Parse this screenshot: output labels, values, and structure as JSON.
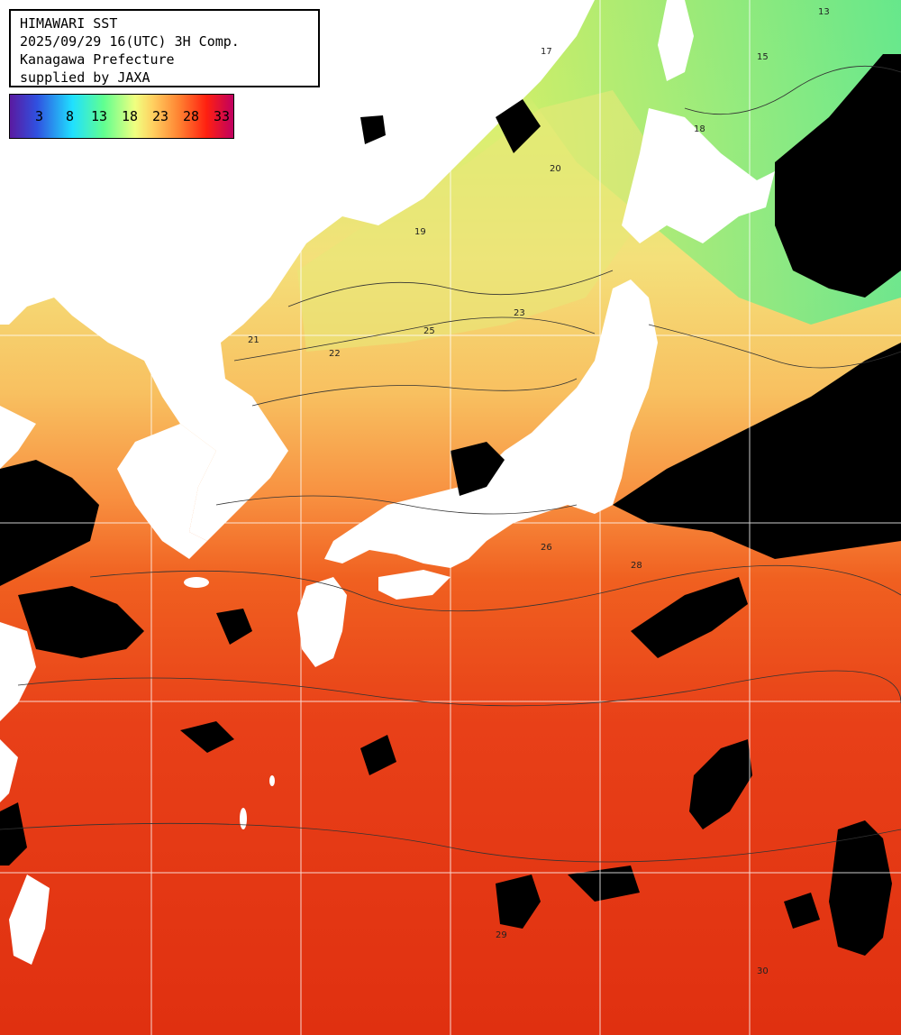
{
  "header": {
    "line1": "HIMAWARI SST",
    "line2": "2025/09/29 16(UTC) 3H Comp.",
    "line3": "Kanagawa Prefecture",
    "line4": "supplied by JAXA"
  },
  "legend": {
    "ticks": [
      "3",
      "8",
      "13",
      "18",
      "23",
      "28",
      "33"
    ],
    "colors": [
      "#5a1aa0",
      "#3050e0",
      "#20e0ff",
      "#60ff90",
      "#f0ff80",
      "#ff8030",
      "#c00060"
    ]
  },
  "contour_labels": [
    "13",
    "15",
    "17",
    "18",
    "19",
    "20",
    "21",
    "22",
    "23",
    "25",
    "26",
    "28",
    "29",
    "30"
  ],
  "land_color": "#ffffff",
  "cloud_color": "#000000"
}
